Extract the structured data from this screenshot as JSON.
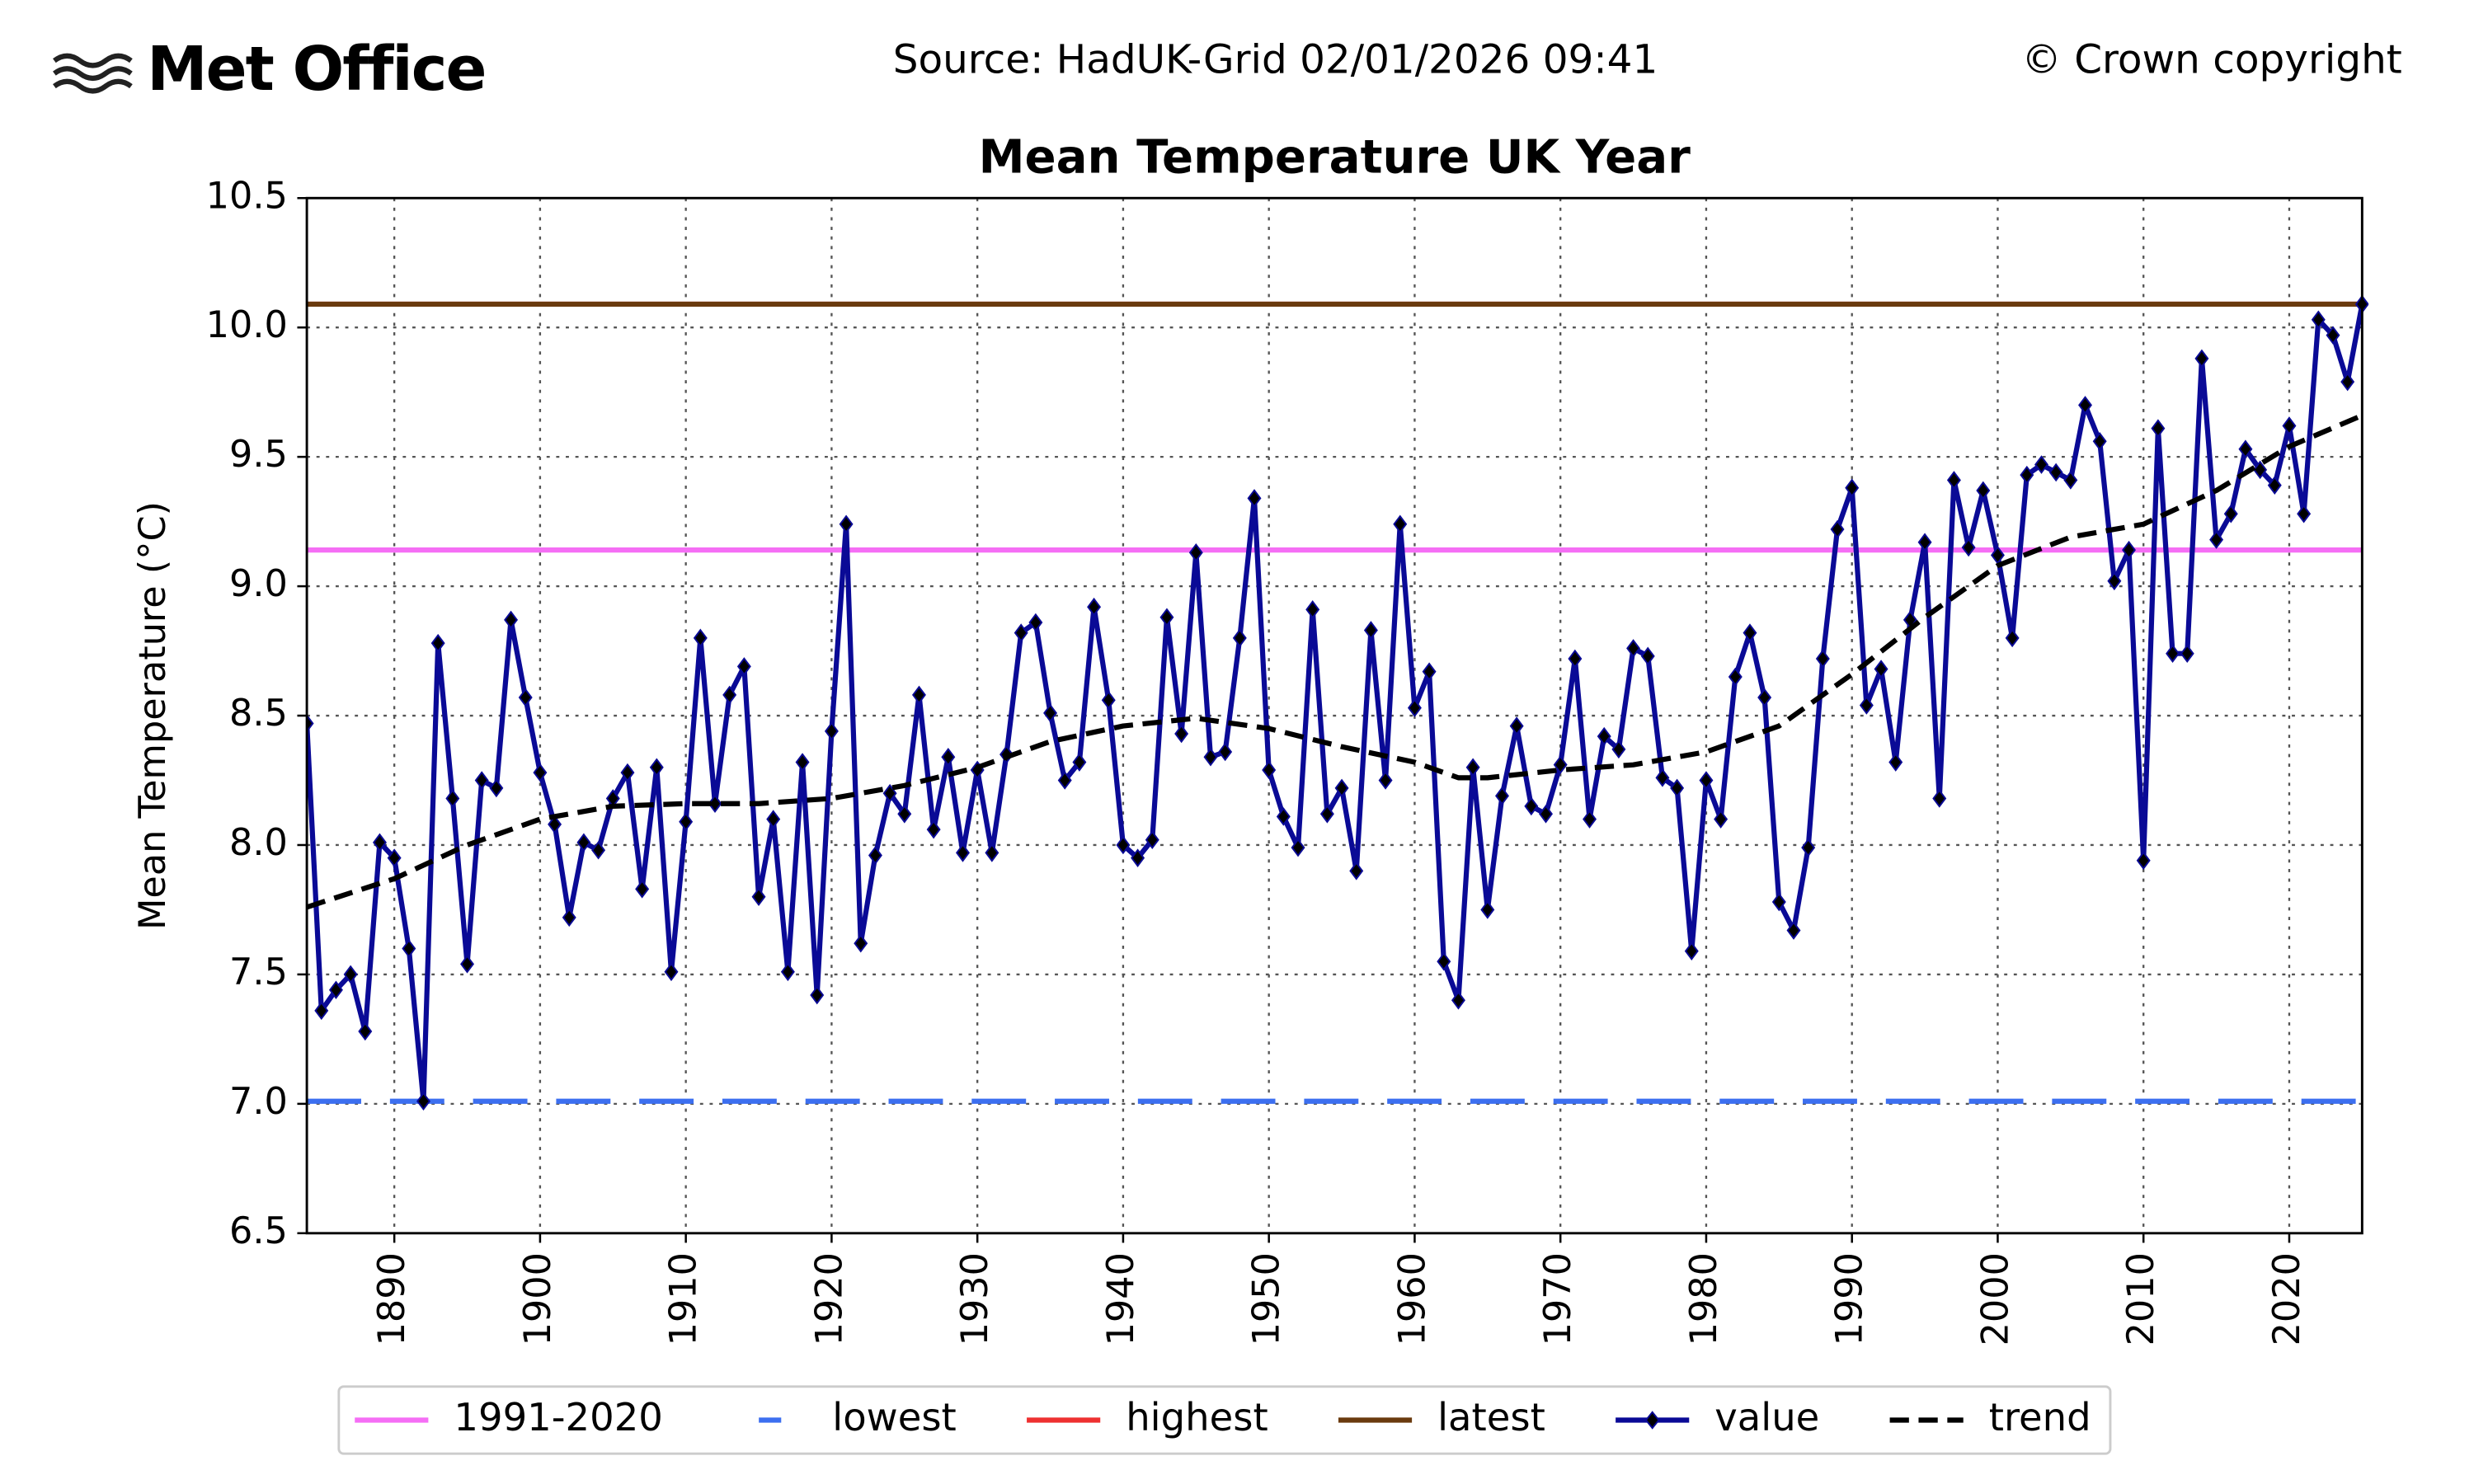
{
  "chart_data": {
    "type": "line",
    "brand": "Met Office",
    "source": "Source: HadUK-Grid 02/01/2026 09:41",
    "copyright": "© Crown copyright",
    "title": "Mean Temperature UK Year",
    "ylabel": "Mean Temperature (°C)",
    "xlim": [
      1884,
      2025
    ],
    "ylim": [
      6.5,
      10.5
    ],
    "xticks": [
      1890,
      1900,
      1910,
      1920,
      1930,
      1940,
      1950,
      1960,
      1970,
      1980,
      1990,
      2000,
      2010,
      2020
    ],
    "yticks": [
      6.5,
      {
        "value": 7,
        "label": "7.0"
      },
      7.5,
      {
        "value": 8,
        "label": "8.0"
      },
      8.5,
      {
        "value": 9,
        "label": "9.0"
      },
      9.5,
      {
        "value": 10,
        "label": "10.0"
      },
      10.5
    ],
    "grid": true,
    "legend": "bottom",
    "reference_lines": [
      {
        "name": "1991-2020",
        "color": "#f56ef5",
        "value": 9.14,
        "dashed": false
      },
      {
        "name": "lowest",
        "color": "#3c6ff0",
        "value": 7.01,
        "dashed": true
      },
      {
        "name": "highest",
        "color": "#ee3030",
        "value": 10.09,
        "dashed": false
      },
      {
        "name": "latest",
        "color": "#6a3a0e",
        "value": 10.09,
        "dashed": false
      }
    ],
    "series": [
      {
        "name": "value",
        "color": "#0a0a96",
        "markers": true,
        "dashed": false,
        "x": [
          1884,
          1885,
          1886,
          1887,
          1888,
          1889,
          1890,
          1891,
          1892,
          1893,
          1894,
          1895,
          1896,
          1897,
          1898,
          1899,
          1900,
          1901,
          1902,
          1903,
          1904,
          1905,
          1906,
          1907,
          1908,
          1909,
          1910,
          1911,
          1912,
          1913,
          1914,
          1915,
          1916,
          1917,
          1918,
          1919,
          1920,
          1921,
          1922,
          1923,
          1924,
          1925,
          1926,
          1927,
          1928,
          1929,
          1930,
          1931,
          1932,
          1933,
          1934,
          1935,
          1936,
          1937,
          1938,
          1939,
          1940,
          1941,
          1942,
          1943,
          1944,
          1945,
          1946,
          1947,
          1948,
          1949,
          1950,
          1951,
          1952,
          1953,
          1954,
          1955,
          1956,
          1957,
          1958,
          1959,
          1960,
          1961,
          1962,
          1963,
          1964,
          1965,
          1966,
          1967,
          1968,
          1969,
          1970,
          1971,
          1972,
          1973,
          1974,
          1975,
          1976,
          1977,
          1978,
          1979,
          1980,
          1981,
          1982,
          1983,
          1984,
          1985,
          1986,
          1987,
          1988,
          1989,
          1990,
          1991,
          1992,
          1993,
          1994,
          1995,
          1996,
          1997,
          1998,
          1999,
          2000,
          2001,
          2002,
          2003,
          2004,
          2005,
          2006,
          2007,
          2008,
          2009,
          2010,
          2011,
          2012,
          2013,
          2014,
          2015,
          2016,
          2017,
          2018,
          2019,
          2020,
          2021,
          2022,
          2023,
          2024,
          2025
        ],
        "values": [
          8.47,
          7.36,
          7.44,
          7.5,
          7.28,
          8.01,
          7.95,
          7.6,
          7.01,
          8.78,
          8.18,
          7.54,
          8.25,
          8.22,
          8.87,
          8.57,
          8.28,
          8.08,
          7.72,
          8.01,
          7.98,
          8.18,
          8.28,
          7.83,
          8.3,
          7.51,
          8.09,
          8.8,
          8.16,
          8.58,
          8.69,
          7.8,
          8.1,
          7.51,
          8.32,
          7.42,
          8.44,
          9.24,
          7.62,
          7.96,
          8.2,
          8.12,
          8.58,
          8.06,
          8.34,
          7.97,
          8.29,
          7.97,
          8.35,
          8.82,
          8.86,
          8.51,
          8.25,
          8.32,
          8.92,
          8.56,
          8.0,
          7.95,
          8.02,
          8.88,
          8.43,
          9.13,
          8.34,
          8.36,
          8.8,
          9.34,
          8.29,
          8.11,
          7.99,
          8.91,
          8.12,
          8.22,
          7.9,
          8.83,
          8.25,
          9.24,
          8.53,
          8.67,
          7.55,
          7.4,
          8.3,
          7.75,
          8.19,
          8.46,
          8.15,
          8.12,
          8.31,
          8.72,
          8.1,
          8.42,
          8.37,
          8.76,
          8.73,
          8.26,
          8.22,
          7.59,
          8.25,
          8.1,
          8.65,
          8.82,
          8.57,
          7.78,
          7.67,
          7.99,
          8.72,
          9.22,
          9.38,
          8.54,
          8.68,
          8.32,
          8.87,
          9.17,
          8.18,
          9.41,
          9.15,
          9.37,
          9.12,
          8.8,
          9.43,
          9.47,
          9.44,
          9.41,
          9.7,
          9.56,
          9.02,
          9.14,
          7.94,
          9.61,
          8.74,
          8.74,
          9.88,
          9.18,
          9.28,
          9.53,
          9.45,
          9.39,
          9.62,
          9.28,
          10.03,
          9.97,
          9.79,
          10.09
        ]
      },
      {
        "name": "trend",
        "color": "#000000",
        "markers": false,
        "dashed": true,
        "x": [
          1884,
          1890,
          1895,
          1900,
          1905,
          1910,
          1915,
          1920,
          1925,
          1930,
          1935,
          1940,
          1945,
          1950,
          1955,
          1960,
          1963,
          1965,
          1970,
          1975,
          1980,
          1985,
          1990,
          1995,
          2000,
          2005,
          2010,
          2015,
          2020,
          2025
        ],
        "values": [
          7.76,
          7.87,
          8.0,
          8.1,
          8.15,
          8.16,
          8.16,
          8.18,
          8.23,
          8.3,
          8.4,
          8.46,
          8.49,
          8.45,
          8.38,
          8.32,
          8.26,
          8.26,
          8.29,
          8.31,
          8.36,
          8.46,
          8.66,
          8.88,
          9.08,
          9.19,
          9.24,
          9.37,
          9.54,
          9.66
        ]
      }
    ]
  }
}
